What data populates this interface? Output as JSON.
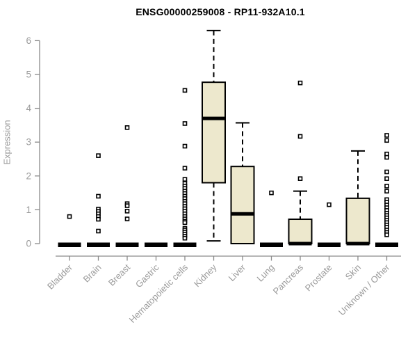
{
  "chart_data": {
    "type": "boxplot",
    "title": "ENSG00000259008 - RP11-932A10.1",
    "ylabel": "Expression",
    "xlabel": "",
    "ylim": [
      0,
      6.4
    ],
    "yticks": [
      0,
      1,
      2,
      3,
      4,
      5,
      6
    ],
    "grid": false,
    "legend": "none",
    "categories": [
      "Bladder",
      "Brain",
      "Breast",
      "Gastric",
      "Hematopoietic cells",
      "Kidney",
      "Liver",
      "Lung",
      "Pancreas",
      "Prostate",
      "Skin",
      "Unknown / Other"
    ],
    "series": [
      {
        "category": "Bladder",
        "q1": 0,
        "median": 0,
        "q3": 0,
        "whisker_low": 0,
        "whisker_high": 0,
        "outliers": [
          0.8
        ]
      },
      {
        "category": "Brain",
        "q1": 0,
        "median": 0,
        "q3": 0,
        "whisker_low": 0,
        "whisker_high": 0,
        "outliers": [
          2.6,
          1.4,
          1.02,
          0.95,
          0.88,
          0.8,
          0.72,
          0.37
        ]
      },
      {
        "category": "Breast",
        "q1": 0,
        "median": 0,
        "q3": 0,
        "whisker_low": 0,
        "whisker_high": 0,
        "outliers": [
          3.43,
          1.18,
          1.12,
          0.96,
          0.73
        ]
      },
      {
        "category": "Gastric",
        "q1": 0,
        "median": 0,
        "q3": 0,
        "whisker_low": 0,
        "whisker_high": 0,
        "outliers": []
      },
      {
        "category": "Hematopoietic cells",
        "q1": 0,
        "median": 0,
        "q3": 0,
        "whisker_low": 0,
        "whisker_high": 0,
        "outliers": [
          4.53,
          3.55,
          2.88,
          2.23,
          1.9,
          1.78,
          1.7,
          1.63,
          1.55,
          1.48,
          1.4,
          1.33,
          1.25,
          1.18,
          1.1,
          1.03,
          0.96,
          0.88,
          0.8,
          0.73,
          0.66,
          0.62,
          0.45,
          0.4,
          0.34,
          0.28,
          0.22,
          0.16
        ]
      },
      {
        "category": "Kidney",
        "q1": 1.8,
        "median": 3.7,
        "q3": 4.77,
        "whisker_low": 0.08,
        "whisker_high": 6.3,
        "outliers": []
      },
      {
        "category": "Liver",
        "q1": 0,
        "median": 0.88,
        "q3": 2.28,
        "whisker_low": 0,
        "whisker_high": 3.57,
        "outliers": []
      },
      {
        "category": "Lung",
        "q1": 0,
        "median": 0,
        "q3": 0,
        "whisker_low": 0,
        "whisker_high": 0,
        "outliers": [
          1.5
        ]
      },
      {
        "category": "Pancreas",
        "q1": 0,
        "median": 0,
        "q3": 0.72,
        "whisker_low": 0,
        "whisker_high": 1.55,
        "outliers": [
          4.75,
          3.17,
          1.92
        ]
      },
      {
        "category": "Prostate",
        "q1": 0,
        "median": 0,
        "q3": 0,
        "whisker_low": 0,
        "whisker_high": 0,
        "outliers": [
          1.15
        ]
      },
      {
        "category": "Skin",
        "q1": 0,
        "median": 0,
        "q3": 1.34,
        "whisker_low": 0,
        "whisker_high": 2.74,
        "outliers": []
      },
      {
        "category": "Unknown / Other",
        "q1": 0,
        "median": 0,
        "q3": 0,
        "whisker_low": 0,
        "whisker_high": 0,
        "outliers": [
          3.2,
          3.05,
          2.65,
          2.55,
          2.12,
          1.92,
          1.7,
          1.55,
          1.3,
          1.22,
          1.14,
          1.06,
          0.98,
          0.9,
          0.83,
          0.76,
          0.69,
          0.62,
          0.55,
          0.48,
          0.4,
          0.33,
          0.26
        ]
      }
    ],
    "colors": {
      "box_fill": "#EDE8CD",
      "box_border": "#000000",
      "median": "#000000",
      "whisker": "#000000",
      "outlier_border": "#000000",
      "outlier_fill": "#ffffff",
      "axis": "#8a8a8a",
      "tick_label": "#9a9a9a",
      "title": "#000000",
      "background": "#ffffff"
    }
  }
}
